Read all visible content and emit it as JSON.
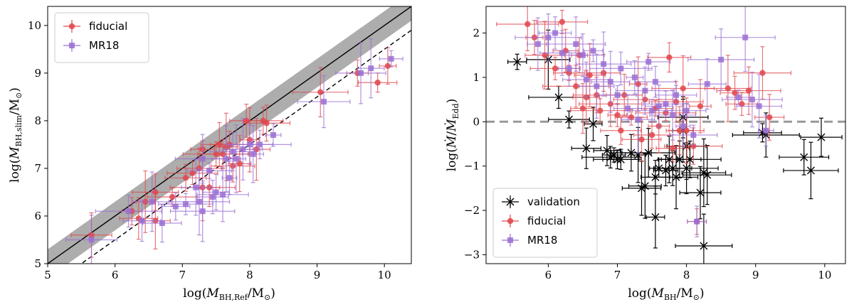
{
  "colors": {
    "fiducial": "#e0474c",
    "mr18": "#9a6fd4",
    "validation": "#000000",
    "band": "#999999",
    "eddington_line": "#999999"
  },
  "chart_data": [
    {
      "type": "scatter",
      "xlabel": "log(M_BH,Ref / M_⊙)",
      "ylabel": "log(M_BH,slim / M_⊙)",
      "xlim": [
        5,
        10.4
      ],
      "ylim": [
        5,
        10.4
      ],
      "xticks": [
        "5",
        "6",
        "7",
        "8",
        "9",
        "10"
      ],
      "yticks": [
        "5",
        "6",
        "7",
        "8",
        "9",
        "10"
      ],
      "legend": [
        "fiducial",
        "MR18"
      ],
      "legend_position": "top-left",
      "reference_lines": [
        {
          "name": "one-to-one",
          "style": "solid",
          "slope": 1,
          "intercept": 0,
          "band_halfwidth": 0.3
        },
        {
          "name": "offset",
          "style": "dashed",
          "slope": 1,
          "intercept": -0.5
        }
      ],
      "series": [
        {
          "name": "fiducial",
          "marker": "circle",
          "points": [
            [
              5.65,
              5.6
            ],
            [
              6.25,
              6.1
            ],
            [
              6.35,
              5.95
            ],
            [
              6.45,
              6.3
            ],
            [
              6.6,
              6.5
            ],
            [
              6.6,
              5.9
            ],
            [
              6.85,
              6.4
            ],
            [
              7.05,
              6.8
            ],
            [
              7.15,
              6.9
            ],
            [
              7.25,
              7.0
            ],
            [
              7.3,
              7.4
            ],
            [
              7.3,
              6.6
            ],
            [
              7.4,
              6.6
            ],
            [
              7.5,
              7.3
            ],
            [
              7.55,
              7.5
            ],
            [
              7.6,
              7.3
            ],
            [
              7.65,
              7.45
            ],
            [
              7.7,
              7.5
            ],
            [
              7.75,
              7.05
            ],
            [
              7.85,
              7.1
            ],
            [
              7.95,
              8.0
            ],
            [
              8.0,
              7.6
            ],
            [
              8.1,
              7.4
            ],
            [
              8.2,
              8.0
            ],
            [
              8.25,
              7.95
            ],
            [
              9.05,
              8.6
            ],
            [
              9.6,
              9.0
            ],
            [
              9.9,
              8.8
            ],
            [
              10.05,
              9.15
            ]
          ]
        },
        {
          "name": "MR18",
          "marker": "square",
          "points": [
            [
              5.65,
              5.5
            ],
            [
              6.2,
              6.1
            ],
            [
              6.4,
              5.9
            ],
            [
              6.55,
              6.3
            ],
            [
              6.7,
              5.85
            ],
            [
              6.9,
              6.2
            ],
            [
              7.05,
              6.25
            ],
            [
              7.2,
              6.6
            ],
            [
              7.25,
              6.3
            ],
            [
              7.3,
              6.1
            ],
            [
              7.3,
              7.2
            ],
            [
              7.4,
              6.95
            ],
            [
              7.45,
              6.4
            ],
            [
              7.5,
              6.5
            ],
            [
              7.6,
              6.45
            ],
            [
              7.65,
              7.2
            ],
            [
              7.7,
              6.8
            ],
            [
              7.75,
              7.35
            ],
            [
              7.8,
              7.2
            ],
            [
              7.9,
              7.4
            ],
            [
              8.0,
              7.5
            ],
            [
              8.05,
              7.3
            ],
            [
              8.15,
              7.5
            ],
            [
              8.35,
              7.7
            ],
            [
              9.1,
              8.4
            ],
            [
              9.65,
              9.0
            ],
            [
              9.8,
              9.1
            ],
            [
              10.1,
              9.3
            ]
          ]
        }
      ]
    },
    {
      "type": "scatter",
      "xlabel": "log(M_BH / M_⊙)",
      "ylabel": "log(Ṁ / Ṁ_Edd)",
      "xlim": [
        5.1,
        10.3
      ],
      "ylim": [
        -3.2,
        2.6
      ],
      "xticks": [
        "6",
        "7",
        "8",
        "9",
        "10"
      ],
      "yticks": [
        "−3",
        "−2",
        "−1",
        "0",
        "1",
        "2"
      ],
      "legend": [
        "validation",
        "fiducial",
        "MR18"
      ],
      "legend_position": "bottom-left",
      "reference_lines": [
        {
          "name": "eddington",
          "style": "dashed",
          "y": 0
        }
      ],
      "series": [
        {
          "name": "validation",
          "marker": "x",
          "points": [
            [
              5.55,
              1.35
            ],
            [
              6.0,
              1.4
            ],
            [
              6.15,
              0.55
            ],
            [
              6.3,
              0.05
            ],
            [
              6.55,
              -0.6
            ],
            [
              6.65,
              -0.05
            ],
            [
              6.85,
              -0.65
            ],
            [
              6.9,
              -0.8
            ],
            [
              6.95,
              -0.75
            ],
            [
              7.0,
              -0.85
            ],
            [
              7.05,
              -0.85
            ],
            [
              7.2,
              -0.7
            ],
            [
              7.3,
              -0.75
            ],
            [
              7.35,
              -1.5
            ],
            [
              7.4,
              -1.45
            ],
            [
              7.45,
              -0.7
            ],
            [
              7.55,
              -1.25
            ],
            [
              7.55,
              -2.15
            ],
            [
              7.6,
              -1.05
            ],
            [
              7.7,
              -1.1
            ],
            [
              7.75,
              -0.85
            ],
            [
              7.8,
              -1.05
            ],
            [
              7.85,
              -1.25
            ],
            [
              7.9,
              -0.85
            ],
            [
              7.95,
              -0.2
            ],
            [
              7.95,
              0.1
            ],
            [
              8.0,
              -1.05
            ],
            [
              8.0,
              -0.55
            ],
            [
              8.05,
              -0.85
            ],
            [
              8.2,
              -1.6
            ],
            [
              8.25,
              -2.8
            ],
            [
              8.25,
              -1.15
            ],
            [
              8.3,
              -1.2
            ],
            [
              9.1,
              -0.25
            ],
            [
              9.15,
              -0.3
            ],
            [
              9.7,
              -0.8
            ],
            [
              9.8,
              -1.1
            ],
            [
              9.95,
              -0.35
            ]
          ]
        },
        {
          "name": "fiducial",
          "marker": "circle",
          "points": [
            [
              5.7,
              2.2
            ],
            [
              5.8,
              1.9
            ],
            [
              5.95,
              1.5
            ],
            [
              6.1,
              1.2
            ],
            [
              6.2,
              2.25
            ],
            [
              6.25,
              1.6
            ],
            [
              6.3,
              1.1
            ],
            [
              6.4,
              0.8
            ],
            [
              6.45,
              1.5
            ],
            [
              6.5,
              0.3
            ],
            [
              6.55,
              0.55
            ],
            [
              6.6,
              1.05
            ],
            [
              6.7,
              0.6
            ],
            [
              6.75,
              0.25
            ],
            [
              6.8,
              1.1
            ],
            [
              6.9,
              0.4
            ],
            [
              7.0,
              0.15
            ],
            [
              7.05,
              -0.2
            ],
            [
              7.1,
              0.6
            ],
            [
              7.2,
              0.1
            ],
            [
              7.3,
              0.85
            ],
            [
              7.35,
              -0.4
            ],
            [
              7.4,
              0.5
            ],
            [
              7.5,
              -0.3
            ],
            [
              7.55,
              0.3
            ],
            [
              7.6,
              -0.1
            ],
            [
              7.7,
              0.2
            ],
            [
              7.75,
              1.45
            ],
            [
              7.8,
              -0.6
            ],
            [
              7.85,
              0.45
            ],
            [
              7.9,
              -0.2
            ],
            [
              7.95,
              0.75
            ],
            [
              8.0,
              -0.2
            ],
            [
              8.1,
              -0.55
            ],
            [
              8.15,
              -2.25
            ],
            [
              8.2,
              0.35
            ],
            [
              8.6,
              0.75
            ],
            [
              8.7,
              0.65
            ],
            [
              8.8,
              0.4
            ],
            [
              8.9,
              0.7
            ],
            [
              9.1,
              1.1
            ],
            [
              9.2,
              0.1
            ]
          ]
        },
        {
          "name": "MR18",
          "marker": "square",
          "points": [
            [
              5.85,
              1.75
            ],
            [
              6.0,
              1.9
            ],
            [
              6.1,
              2.0
            ],
            [
              6.2,
              1.55
            ],
            [
              6.3,
              1.2
            ],
            [
              6.4,
              1.75
            ],
            [
              6.5,
              1.5
            ],
            [
              6.55,
              0.95
            ],
            [
              6.65,
              1.6
            ],
            [
              6.7,
              0.8
            ],
            [
              6.8,
              1.3
            ],
            [
              6.9,
              0.9
            ],
            [
              7.0,
              0.6
            ],
            [
              7.05,
              1.2
            ],
            [
              7.15,
              0.3
            ],
            [
              7.25,
              1.0
            ],
            [
              7.3,
              0.05
            ],
            [
              7.4,
              0.7
            ],
            [
              7.45,
              1.35
            ],
            [
              7.5,
              0.25
            ],
            [
              7.55,
              0.9
            ],
            [
              7.6,
              0.35
            ],
            [
              7.7,
              0.4
            ],
            [
              7.8,
              0.15
            ],
            [
              7.85,
              0.6
            ],
            [
              7.95,
              -0.1
            ],
            [
              8.0,
              0.25
            ],
            [
              8.1,
              -0.3
            ],
            [
              8.15,
              -2.25
            ],
            [
              8.3,
              0.85
            ],
            [
              8.5,
              1.4
            ],
            [
              8.75,
              0.55
            ],
            [
              8.85,
              1.9
            ],
            [
              8.95,
              0.5
            ],
            [
              9.05,
              0.35
            ],
            [
              9.15,
              -0.2
            ]
          ]
        }
      ]
    }
  ]
}
